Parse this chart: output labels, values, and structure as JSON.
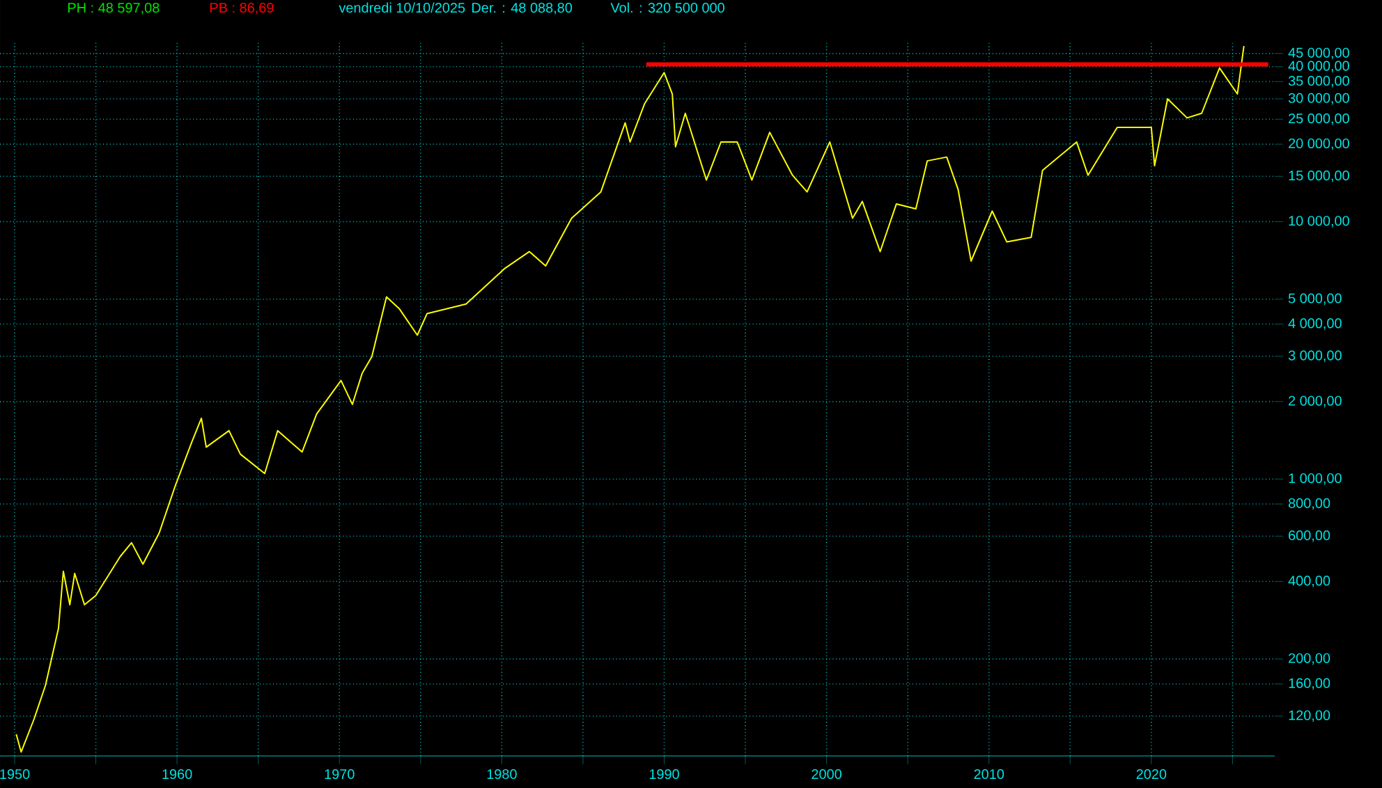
{
  "chart_data": {
    "type": "line",
    "log": "y",
    "grid": true,
    "annotations": [
      "PH : 48 597,08",
      "PB : 86,69",
      "vendredi 10/10/2025",
      "Der. : 48 088,80",
      "Vol. : 320 500 000"
    ],
    "xlim": [
      1949.1,
      2027.6
    ],
    "ylim": [
      84,
      50000
    ],
    "xticks": [
      1950,
      {
        "value": 1955,
        "label": null
      },
      1960,
      {
        "value": 1965,
        "label": null
      },
      1970,
      {
        "value": 1975,
        "label": null
      },
      1980,
      {
        "value": 1985,
        "label": null
      },
      1990,
      {
        "value": 1995,
        "label": null
      },
      2000,
      {
        "value": 2005,
        "label": null
      },
      2010,
      {
        "value": 2015,
        "label": null
      },
      2020,
      {
        "value": 2025,
        "label": null
      }
    ],
    "yticks": [
      {
        "value": 120,
        "label": "120,00"
      },
      {
        "value": 160,
        "label": "160,00"
      },
      {
        "value": 200,
        "label": "200,00"
      },
      {
        "value": 400,
        "label": "400,00"
      },
      {
        "value": 600,
        "label": "600,00"
      },
      {
        "value": 800,
        "label": "800,00"
      },
      {
        "value": 1000,
        "label": "1 000,00"
      },
      {
        "value": 2000,
        "label": "2 000,00"
      },
      {
        "value": 3000,
        "label": "3 000,00"
      },
      {
        "value": 4000,
        "label": "4 000,00"
      },
      {
        "value": 5000,
        "label": "5 000,00"
      },
      {
        "value": 10000,
        "label": "10 000,00"
      },
      {
        "value": 15000,
        "label": "15 000,00"
      },
      {
        "value": 20000,
        "label": "20 000,00"
      },
      {
        "value": 25000,
        "label": "25 000,00"
      },
      {
        "value": 30000,
        "label": "30 000,00"
      },
      {
        "value": 35000,
        "label": "35 000,00"
      },
      {
        "value": 40000,
        "label": "40 000,00"
      },
      {
        "value": 45000,
        "label": "45 000,00"
      }
    ],
    "series": [
      {
        "color": "#ffff00",
        "x": [
          1950.1,
          1950.4,
          1951.2,
          1951.9,
          1952.7,
          1953.0,
          1953.4,
          1953.7,
          1954.3,
          1955.0,
          1956.5,
          1957.2,
          1957.9,
          1958.9,
          1959.9,
          1960.9,
          1961.5,
          1961.8,
          1963.2,
          1963.9,
          1965.4,
          1966.2,
          1967.7,
          1968.6,
          1970.1,
          1970.8,
          1971.4,
          1972.0,
          1972.9,
          1973.7,
          1974.8,
          1975.4,
          1977.8,
          1980.2,
          1981.7,
          1982.7,
          1984.3,
          1986.1,
          1987.6,
          1987.9,
          1988.8,
          1990.0,
          1990.5,
          1990.7,
          1991.3,
          1992.6,
          1993.5,
          1994.5,
          1995.4,
          1996.5,
          1997.9,
          1998.8,
          2000.2,
          2001.6,
          2002.2,
          2003.3,
          2004.3,
          2005.5,
          2006.2,
          2007.4,
          2008.1,
          2008.9,
          2010.2,
          2011.1,
          2012.6,
          2013.3,
          2015.4,
          2016.1,
          2017.9,
          2020.0,
          2020.2,
          2021.0,
          2022.2,
          2023.1,
          2024.2,
          2025.3,
          2025.7
        ],
        "values": [
          102,
          87,
          117,
          158,
          263,
          438,
          325,
          430,
          325,
          353,
          500,
          566,
          467,
          617,
          944,
          1387,
          1723,
          1330,
          1542,
          1250,
          1051,
          1542,
          1274,
          1791,
          2415,
          1950,
          2574,
          2993,
          5100,
          4580,
          3622,
          4395,
          4785,
          6592,
          7652,
          6728,
          10310,
          13050,
          24210,
          20400,
          28770,
          37930,
          31330,
          19540,
          26360,
          14510,
          20400,
          20400,
          14510,
          22230,
          15150,
          13050,
          20400,
          10310,
          11980,
          7650,
          11720,
          11220,
          17220,
          17820,
          13340,
          7030,
          10990,
          8340,
          8690,
          15810,
          20400,
          15150,
          23230,
          23230,
          16490,
          30000,
          25290,
          26360,
          39550,
          31330,
          48100
        ]
      },
      {
        "color": "#ff0000",
        "x": [
          1988.9,
          2027.2
        ],
        "values": [
          40800,
          40800
        ]
      }
    ]
  }
}
